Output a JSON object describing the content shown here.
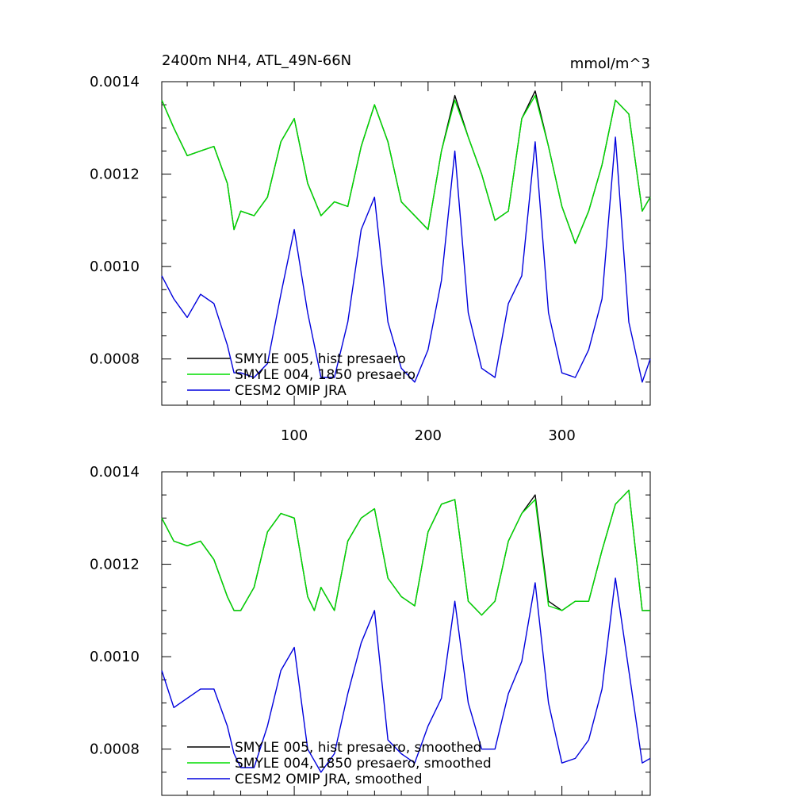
{
  "figure": {
    "title_left": "2400m NH4, ATL_49N-66N",
    "title_right": "mmol/m^3"
  },
  "chart_data": [
    {
      "type": "line",
      "title": "2400m NH4, ATL_49N-66N",
      "units": "mmol/m^3",
      "xlabel": "",
      "ylabel": "",
      "xlim": [
        1,
        366
      ],
      "ylim": [
        0.0007,
        0.0014
      ],
      "xticks": [
        100,
        200,
        300
      ],
      "xtick_labels": [
        "100",
        "200",
        "300"
      ],
      "yticks": [
        0.0008,
        0.001,
        0.0012,
        0.0014
      ],
      "ytick_labels": [
        "0.0008",
        "0.0010",
        "0.0012",
        "0.0014"
      ],
      "grid": false,
      "legend_position": "lower-left",
      "series": [
        {
          "name": "SMYLE 005, hist presaero",
          "color": "#000000",
          "x": [
            1,
            10,
            20,
            30,
            40,
            50,
            55,
            60,
            70,
            80,
            90,
            100,
            110,
            120,
            130,
            140,
            150,
            160,
            170,
            180,
            190,
            200,
            210,
            220,
            230,
            240,
            250,
            260,
            270,
            280,
            290,
            300,
            310,
            320,
            330,
            340,
            350,
            360,
            366
          ],
          "y": [
            0.00136,
            0.0013,
            0.00124,
            0.00125,
            0.00126,
            0.00118,
            0.00108,
            0.00112,
            0.00111,
            0.00115,
            0.00127,
            0.00132,
            0.00118,
            0.00111,
            0.00114,
            0.00113,
            0.00126,
            0.00135,
            0.00127,
            0.00114,
            0.00111,
            0.00108,
            0.00125,
            0.00137,
            0.00128,
            0.0012,
            0.0011,
            0.00112,
            0.00132,
            0.00138,
            0.00126,
            0.00113,
            0.00105,
            0.00112,
            0.00122,
            0.00136,
            0.00133,
            0.00112,
            0.00115
          ]
        },
        {
          "name": "SMYLE 004, 1850 presaero",
          "color": "#00dd00",
          "x": [
            1,
            10,
            20,
            30,
            40,
            50,
            55,
            60,
            70,
            80,
            90,
            100,
            110,
            120,
            130,
            140,
            150,
            160,
            170,
            180,
            190,
            200,
            210,
            220,
            230,
            240,
            250,
            260,
            270,
            280,
            290,
            300,
            310,
            320,
            330,
            340,
            350,
            360,
            366
          ],
          "y": [
            0.00136,
            0.0013,
            0.00124,
            0.00125,
            0.00126,
            0.00118,
            0.00108,
            0.00112,
            0.00111,
            0.00115,
            0.00127,
            0.00132,
            0.00118,
            0.00111,
            0.00114,
            0.00113,
            0.00126,
            0.00135,
            0.00127,
            0.00114,
            0.00111,
            0.00108,
            0.00125,
            0.00136,
            0.00128,
            0.0012,
            0.0011,
            0.00112,
            0.00132,
            0.00137,
            0.00126,
            0.00113,
            0.00105,
            0.00112,
            0.00122,
            0.00136,
            0.00133,
            0.00112,
            0.00115
          ]
        },
        {
          "name": "CESM2 OMIP JRA",
          "color": "#0000dd",
          "x": [
            1,
            10,
            20,
            30,
            40,
            50,
            55,
            60,
            70,
            80,
            90,
            100,
            110,
            120,
            130,
            140,
            150,
            160,
            170,
            180,
            190,
            200,
            210,
            220,
            230,
            240,
            250,
            260,
            270,
            280,
            290,
            300,
            310,
            320,
            330,
            340,
            350,
            360,
            366
          ],
          "y": [
            0.00098,
            0.00093,
            0.00089,
            0.00094,
            0.00092,
            0.00083,
            0.00077,
            0.00077,
            0.00076,
            0.00079,
            0.00094,
            0.00108,
            0.0009,
            0.00076,
            0.00076,
            0.00088,
            0.00108,
            0.00115,
            0.00088,
            0.00078,
            0.00075,
            0.00082,
            0.00097,
            0.00125,
            0.0009,
            0.00078,
            0.00076,
            0.00092,
            0.00098,
            0.00127,
            0.0009,
            0.00077,
            0.00076,
            0.00082,
            0.00093,
            0.00128,
            0.00088,
            0.00075,
            0.0008
          ]
        }
      ]
    },
    {
      "type": "line",
      "title": "",
      "xlabel": "",
      "ylabel": "",
      "xlim": [
        1,
        366
      ],
      "ylim": [
        0.0007,
        0.0014
      ],
      "yticks": [
        0.0008,
        0.001,
        0.0012,
        0.0014
      ],
      "ytick_labels": [
        "0.0008",
        "0.0010",
        "0.0012",
        "0.0014"
      ],
      "grid": false,
      "legend_position": "lower-left",
      "series": [
        {
          "name": "SMYLE 005, hist presaero, smoothed",
          "color": "#000000",
          "x": [
            1,
            10,
            20,
            30,
            40,
            50,
            55,
            60,
            70,
            80,
            90,
            100,
            110,
            115,
            120,
            130,
            140,
            150,
            160,
            170,
            180,
            190,
            200,
            210,
            220,
            230,
            240,
            250,
            260,
            270,
            280,
            290,
            300,
            310,
            320,
            330,
            340,
            350,
            360,
            366
          ],
          "y": [
            0.0013,
            0.00125,
            0.00124,
            0.00125,
            0.00121,
            0.00113,
            0.0011,
            0.0011,
            0.00115,
            0.00127,
            0.00131,
            0.0013,
            0.00113,
            0.0011,
            0.00115,
            0.0011,
            0.00125,
            0.0013,
            0.00132,
            0.00117,
            0.00113,
            0.00111,
            0.00127,
            0.00133,
            0.00134,
            0.00112,
            0.00109,
            0.00112,
            0.00125,
            0.00131,
            0.00135,
            0.00112,
            0.0011,
            0.00112,
            0.00112,
            0.00123,
            0.00133,
            0.00136,
            0.0011,
            0.0011
          ]
        },
        {
          "name": "SMYLE 004, 1850 presaero, smoothed",
          "color": "#00dd00",
          "x": [
            1,
            10,
            20,
            30,
            40,
            50,
            55,
            60,
            70,
            80,
            90,
            100,
            110,
            115,
            120,
            130,
            140,
            150,
            160,
            170,
            180,
            190,
            200,
            210,
            220,
            230,
            240,
            250,
            260,
            270,
            280,
            290,
            300,
            310,
            320,
            330,
            340,
            350,
            360,
            366
          ],
          "y": [
            0.0013,
            0.00125,
            0.00124,
            0.00125,
            0.00121,
            0.00113,
            0.0011,
            0.0011,
            0.00115,
            0.00127,
            0.00131,
            0.0013,
            0.00113,
            0.0011,
            0.00115,
            0.0011,
            0.00125,
            0.0013,
            0.00132,
            0.00117,
            0.00113,
            0.00111,
            0.00127,
            0.00133,
            0.00134,
            0.00112,
            0.00109,
            0.00112,
            0.00125,
            0.00131,
            0.00134,
            0.00111,
            0.0011,
            0.00112,
            0.00112,
            0.00123,
            0.00133,
            0.00136,
            0.0011,
            0.0011
          ]
        },
        {
          "name": "CESM2 OMIP JRA, smoothed",
          "color": "#0000dd",
          "x": [
            1,
            10,
            20,
            30,
            40,
            50,
            55,
            60,
            70,
            80,
            90,
            100,
            110,
            120,
            130,
            140,
            150,
            160,
            170,
            180,
            190,
            200,
            210,
            220,
            230,
            240,
            250,
            260,
            270,
            280,
            290,
            300,
            310,
            320,
            330,
            340,
            350,
            360,
            366
          ],
          "y": [
            0.00097,
            0.00089,
            0.00091,
            0.00093,
            0.00093,
            0.00085,
            0.00079,
            0.00076,
            0.00076,
            0.00085,
            0.00097,
            0.00102,
            0.0008,
            0.00075,
            0.00079,
            0.00092,
            0.00103,
            0.0011,
            0.00082,
            0.00079,
            0.00077,
            0.00085,
            0.00091,
            0.00112,
            0.0009,
            0.0008,
            0.0008,
            0.00092,
            0.00099,
            0.00116,
            0.0009,
            0.00077,
            0.00078,
            0.00082,
            0.00093,
            0.00117,
            0.00097,
            0.00077,
            0.00078
          ]
        }
      ]
    }
  ]
}
